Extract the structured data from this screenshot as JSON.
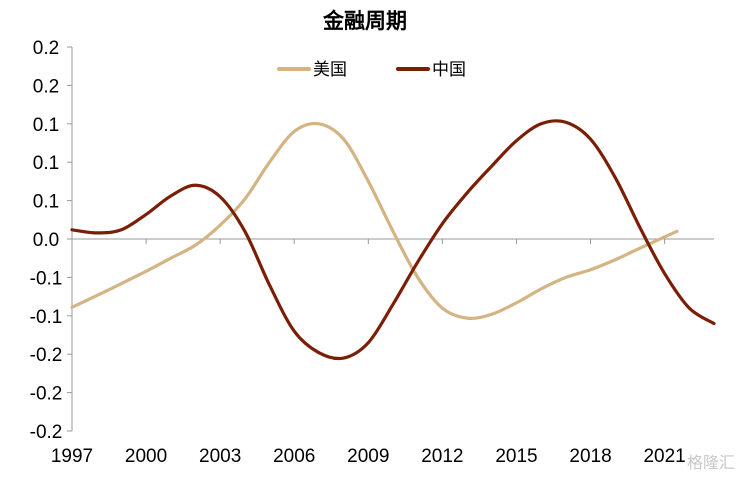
{
  "watermark": "格隆汇",
  "colors": {
    "us": "#d4b483",
    "china": "#7a1f05",
    "axis": "#999999"
  },
  "chart_data": {
    "type": "line",
    "title": "金融周期",
    "xlabel": "",
    "ylabel": "",
    "xlim": [
      1997,
      2023
    ],
    "ylim": [
      -0.25,
      0.25
    ],
    "x_ticks": [
      1997,
      2000,
      2003,
      2006,
      2009,
      2012,
      2015,
      2018,
      2021
    ],
    "y_ticks": [
      {
        "value": 0.25,
        "label": "0.2"
      },
      {
        "value": 0.2,
        "label": "0.2"
      },
      {
        "value": 0.15,
        "label": "0.1"
      },
      {
        "value": 0.1,
        "label": "0.1"
      },
      {
        "value": 0.05,
        "label": "0.1"
      },
      {
        "value": 0.0,
        "label": "0.0"
      },
      {
        "value": -0.05,
        "label": "-0.1"
      },
      {
        "value": -0.1,
        "label": "-0.1"
      },
      {
        "value": -0.15,
        "label": "-0.2"
      },
      {
        "value": -0.2,
        "label": "-0.2"
      },
      {
        "value": -0.25,
        "label": "-0.2"
      }
    ],
    "grid": false,
    "legend_position": "top-center",
    "series": [
      {
        "name": "美国",
        "color": "#d4b483",
        "points": [
          [
            1997.0,
            -0.089
          ],
          [
            1998.5,
            -0.066
          ],
          [
            2000.0,
            -0.042
          ],
          [
            2001.0,
            -0.025
          ],
          [
            2002.0,
            -0.008
          ],
          [
            2003.0,
            0.018
          ],
          [
            2004.0,
            0.052
          ],
          [
            2005.0,
            0.1
          ],
          [
            2006.0,
            0.14
          ],
          [
            2007.0,
            0.15
          ],
          [
            2008.0,
            0.13
          ],
          [
            2009.0,
            0.075
          ],
          [
            2010.0,
            0.01
          ],
          [
            2011.0,
            -0.05
          ],
          [
            2012.0,
            -0.09
          ],
          [
            2013.0,
            -0.103
          ],
          [
            2014.0,
            -0.098
          ],
          [
            2015.0,
            -0.083
          ],
          [
            2016.0,
            -0.065
          ],
          [
            2017.0,
            -0.05
          ],
          [
            2018.0,
            -0.04
          ],
          [
            2019.0,
            -0.027
          ],
          [
            2020.0,
            -0.012
          ],
          [
            2021.5,
            0.01
          ]
        ]
      },
      {
        "name": "中国",
        "color": "#7a1f05",
        "points": [
          [
            1997.0,
            0.012
          ],
          [
            1998.0,
            0.008
          ],
          [
            1999.0,
            0.012
          ],
          [
            2000.0,
            0.032
          ],
          [
            2001.0,
            0.056
          ],
          [
            2002.0,
            0.07
          ],
          [
            2003.0,
            0.055
          ],
          [
            2004.0,
            0.01
          ],
          [
            2005.0,
            -0.06
          ],
          [
            2006.0,
            -0.12
          ],
          [
            2007.0,
            -0.148
          ],
          [
            2008.0,
            -0.155
          ],
          [
            2009.0,
            -0.135
          ],
          [
            2010.0,
            -0.085
          ],
          [
            2011.0,
            -0.03
          ],
          [
            2012.0,
            0.02
          ],
          [
            2013.0,
            0.06
          ],
          [
            2014.0,
            0.095
          ],
          [
            2015.0,
            0.128
          ],
          [
            2016.0,
            0.15
          ],
          [
            2017.0,
            0.152
          ],
          [
            2018.0,
            0.13
          ],
          [
            2019.0,
            0.08
          ],
          [
            2020.0,
            0.015
          ],
          [
            2021.0,
            -0.045
          ],
          [
            2022.0,
            -0.09
          ],
          [
            2023.0,
            -0.11
          ]
        ]
      }
    ]
  }
}
